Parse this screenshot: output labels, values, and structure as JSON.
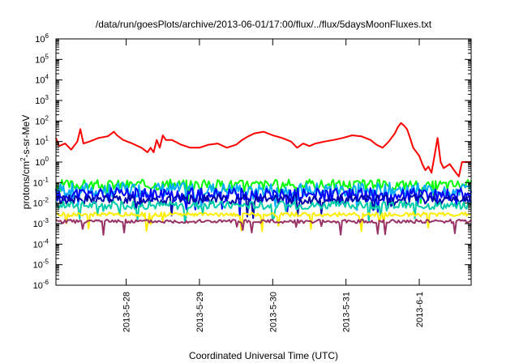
{
  "chart_data": {
    "type": "line",
    "title": "/data/run/goesPlots/archive/2013-06-01/17:00/flux/../flux/5daysMoonFluxes.txt",
    "xlabel": "Coordinated Universal Time (UTC)",
    "ylabel_parts": [
      "protons/cm",
      "2",
      "-s-sr-MeV"
    ],
    "y_scale": "log",
    "ylim": [
      1e-06,
      1000000.0
    ],
    "y_ticks": [
      {
        "base": "10",
        "exp": "-6",
        "value": -6
      },
      {
        "base": "10",
        "exp": "-5",
        "value": -5
      },
      {
        "base": "10",
        "exp": "-4",
        "value": -4
      },
      {
        "base": "10",
        "exp": "-3",
        "value": -3
      },
      {
        "base": "10",
        "exp": "-2",
        "value": -2
      },
      {
        "base": "10",
        "exp": "-1",
        "value": -1
      },
      {
        "base": "10",
        "exp": "0",
        "value": 0
      },
      {
        "base": "10",
        "exp": "1",
        "value": 1
      },
      {
        "base": "10",
        "exp": "2",
        "value": 2
      },
      {
        "base": "10",
        "exp": "3",
        "value": 3
      },
      {
        "base": "10",
        "exp": "4",
        "value": 4
      },
      {
        "base": "10",
        "exp": "5",
        "value": 5
      },
      {
        "base": "10",
        "exp": "6",
        "value": 6
      }
    ],
    "xlim": [
      "2013-05-27T01:00",
      "2013-06-01T17:00"
    ],
    "x_ticks": [
      {
        "label": "2013-5-28",
        "value": "2013-05-28T00:00"
      },
      {
        "label": "2013-5-29",
        "value": "2013-05-29T00:00"
      },
      {
        "label": "2013-5-30",
        "value": "2013-05-30T00:00"
      },
      {
        "label": "2013-5-31",
        "value": "2013-05-31T00:00"
      },
      {
        "label": "2013-6-1",
        "value": "2013-06-01T00:00"
      }
    ],
    "grid": false,
    "legend": "none",
    "series": [
      {
        "color": "#ff0000",
        "points": [
          [
            "2013-05-27T01:00",
            15
          ],
          [
            "2013-05-27T02:00",
            6
          ],
          [
            "2013-05-27T04:00",
            8
          ],
          [
            "2013-05-27T06:00",
            4
          ],
          [
            "2013-05-27T08:00",
            10
          ],
          [
            "2013-05-27T09:00",
            40
          ],
          [
            "2013-05-27T10:00",
            8
          ],
          [
            "2013-05-27T12:00",
            10
          ],
          [
            "2013-05-27T15:00",
            15
          ],
          [
            "2013-05-27T18:00",
            18
          ],
          [
            "2013-05-27T20:00",
            30
          ],
          [
            "2013-05-27T21:00",
            20
          ],
          [
            "2013-05-27T23:00",
            12
          ],
          [
            "2013-05-28T02:00",
            8
          ],
          [
            "2013-05-28T05:00",
            5
          ],
          [
            "2013-05-28T07:00",
            3
          ],
          [
            "2013-05-28T08:00",
            5
          ],
          [
            "2013-05-28T09:00",
            3
          ],
          [
            "2013-05-28T10:00",
            12
          ],
          [
            "2013-05-28T11:00",
            5
          ],
          [
            "2013-05-28T12:00",
            20
          ],
          [
            "2013-05-28T13:00",
            12
          ],
          [
            "2013-05-28T15:00",
            12
          ],
          [
            "2013-05-28T18:00",
            7
          ],
          [
            "2013-05-28T21:00",
            5
          ],
          [
            "2013-05-29T00:00",
            5
          ],
          [
            "2013-05-29T03:00",
            7
          ],
          [
            "2013-05-29T06:00",
            8
          ],
          [
            "2013-05-29T09:00",
            5
          ],
          [
            "2013-05-29T12:00",
            7
          ],
          [
            "2013-05-29T14:00",
            12
          ],
          [
            "2013-05-29T16:00",
            18
          ],
          [
            "2013-05-29T18:00",
            25
          ],
          [
            "2013-05-29T21:00",
            30
          ],
          [
            "2013-05-30T00:00",
            20
          ],
          [
            "2013-05-30T03:00",
            15
          ],
          [
            "2013-05-30T06:00",
            10
          ],
          [
            "2013-05-30T08:00",
            5
          ],
          [
            "2013-05-30T10:00",
            8
          ],
          [
            "2013-05-30T12:00",
            6
          ],
          [
            "2013-05-30T14:00",
            8
          ],
          [
            "2013-05-30T17:00",
            10
          ],
          [
            "2013-05-30T20:00",
            12
          ],
          [
            "2013-05-30T23:00",
            15
          ],
          [
            "2013-05-31T02:00",
            20
          ],
          [
            "2013-05-31T05:00",
            18
          ],
          [
            "2013-05-31T08:00",
            12
          ],
          [
            "2013-05-31T10:00",
            7
          ],
          [
            "2013-05-31T12:00",
            5
          ],
          [
            "2013-05-31T14:00",
            10
          ],
          [
            "2013-05-31T16:00",
            25
          ],
          [
            "2013-05-31T17:00",
            50
          ],
          [
            "2013-05-31T18:00",
            80
          ],
          [
            "2013-05-31T19:00",
            60
          ],
          [
            "2013-05-31T20:00",
            40
          ],
          [
            "2013-05-31T21:00",
            15
          ],
          [
            "2013-05-31T22:00",
            5
          ],
          [
            "2013-06-01T00:00",
            2
          ],
          [
            "2013-06-01T01:00",
            0.8
          ],
          [
            "2013-06-01T02:00",
            0.4
          ],
          [
            "2013-06-01T03:00",
            0.6
          ],
          [
            "2013-06-01T04:00",
            0.3
          ],
          [
            "2013-06-01T05:00",
            2
          ],
          [
            "2013-06-01T06:00",
            15
          ],
          [
            "2013-06-01T07:00",
            1
          ],
          [
            "2013-06-01T08:00",
            0.5
          ],
          [
            "2013-06-01T10:00",
            0.8
          ],
          [
            "2013-06-01T12:00",
            0.3
          ],
          [
            "2013-06-01T13:00",
            0.2
          ],
          [
            "2013-06-01T14:00",
            1
          ],
          [
            "2013-06-01T15:00",
            1
          ],
          [
            "2013-06-01T17:00",
            1
          ]
        ]
      },
      {
        "color": "#00ff00",
        "base": 0.08,
        "amp": 0.5,
        "seed": 3
      },
      {
        "color": "#00aaff",
        "base": 0.045,
        "amp": 0.7,
        "seed": 7
      },
      {
        "color": "#0000ff",
        "base": 0.025,
        "amp": 0.7,
        "seed": 11
      },
      {
        "color": "#0000aa",
        "base": 0.015,
        "amp": 0.45,
        "seed": 13
      },
      {
        "color": "#00ccaa",
        "base": 0.008,
        "amp": 0.4,
        "seed": 17
      },
      {
        "color": "#ffee00",
        "base": 0.0028,
        "amp": 0.2,
        "seed": 19
      },
      {
        "color": "#993366",
        "base": 0.0013,
        "amp": 0.18,
        "seed": 23
      }
    ]
  }
}
